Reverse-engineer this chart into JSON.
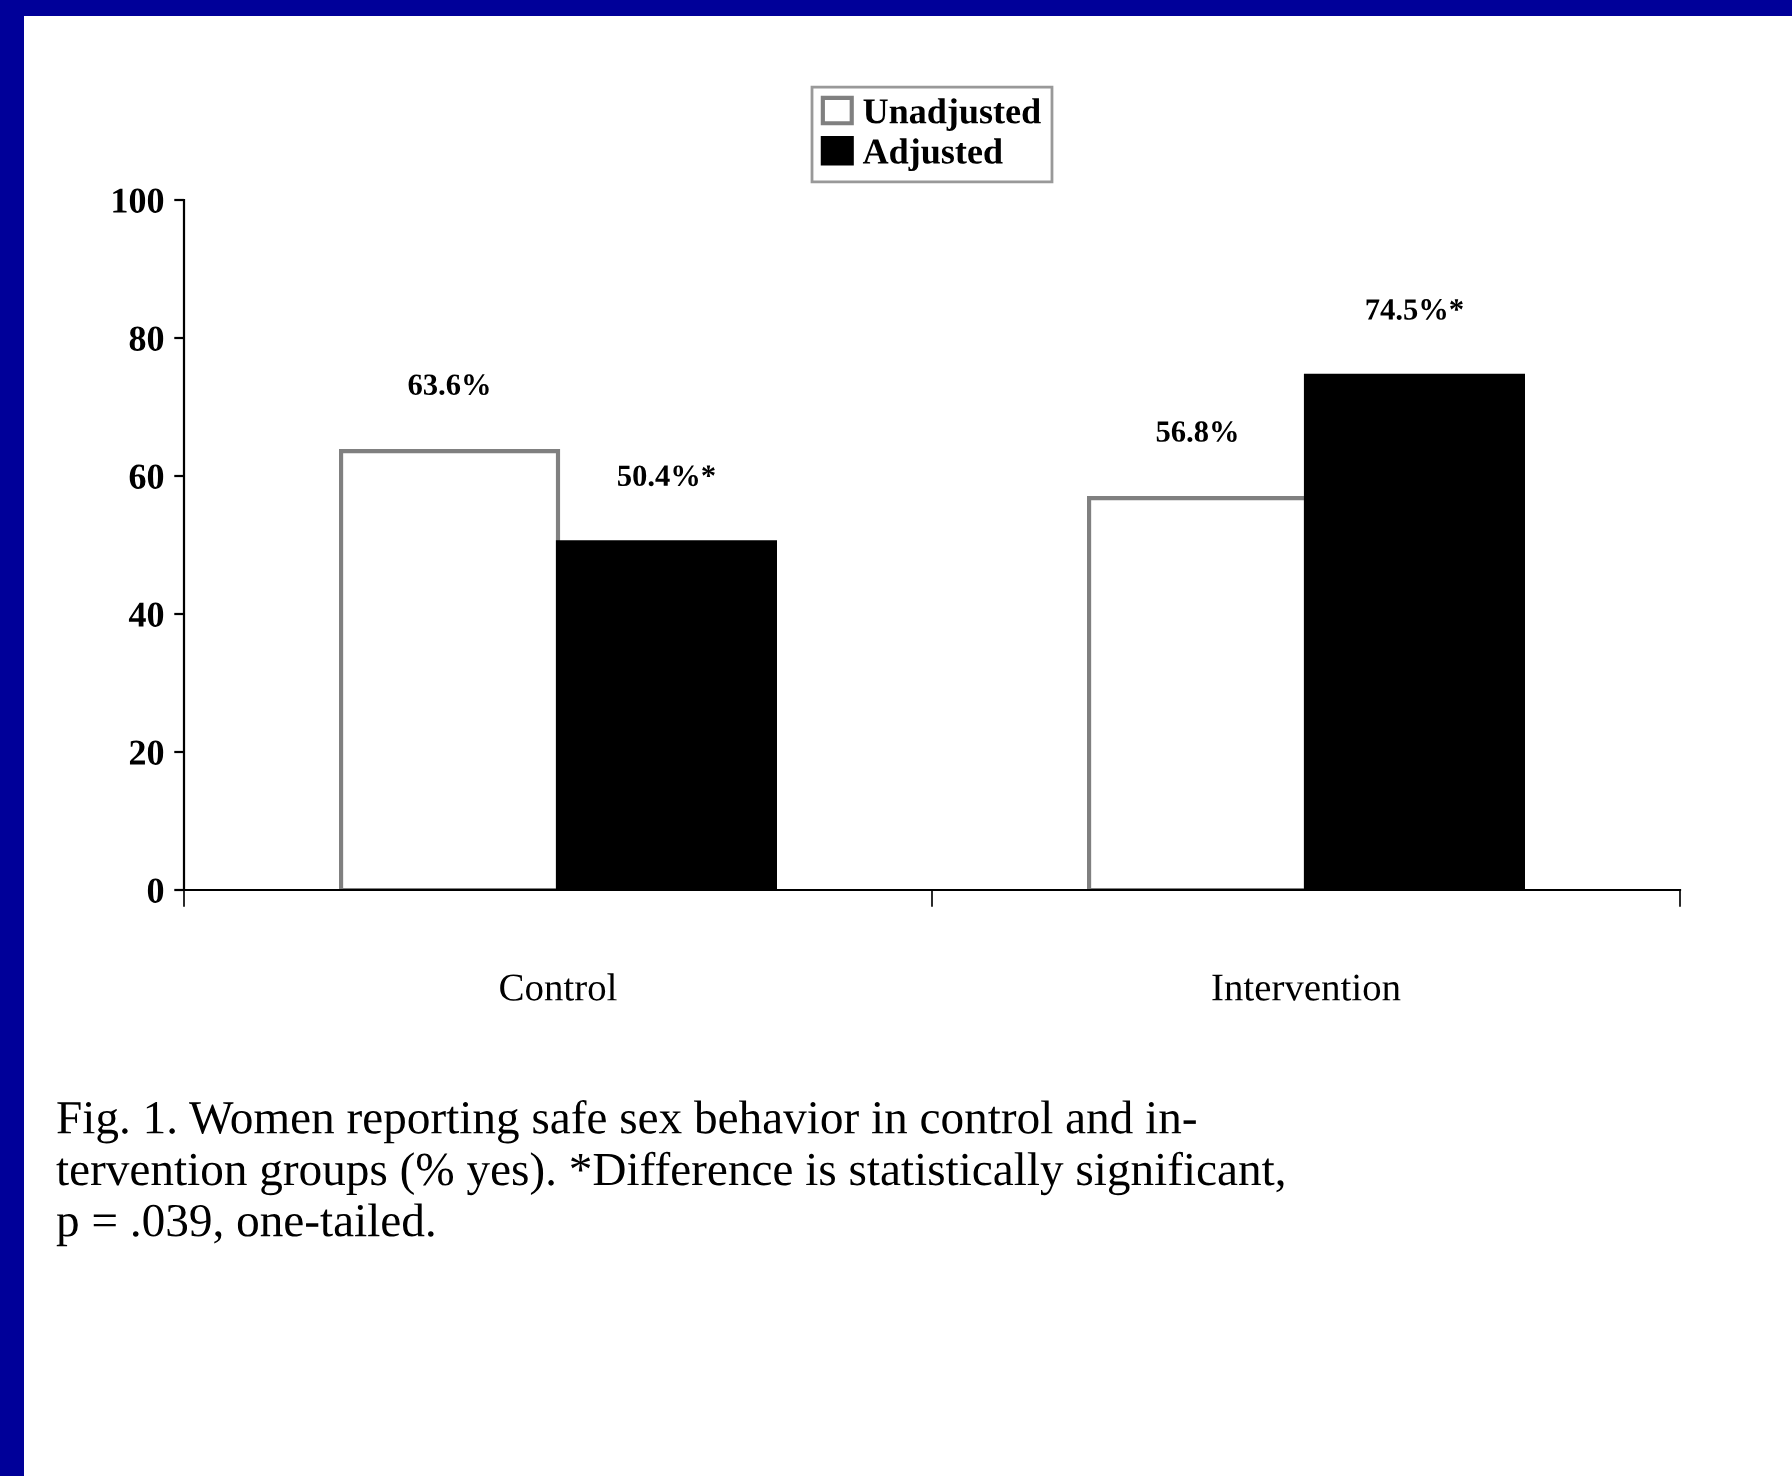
{
  "chart_data": {
    "type": "bar",
    "categories": [
      "Control",
      "Intervention"
    ],
    "series": [
      {
        "name": "Unadjusted",
        "color": "#ffffff",
        "values": [
          63.6,
          56.8
        ],
        "value_labels": [
          "63.6%",
          "56.8%"
        ]
      },
      {
        "name": "Adjusted",
        "color": "#000000",
        "values": [
          50.4,
          74.5
        ],
        "value_labels": [
          "50.4%*",
          "74.5%*"
        ]
      }
    ],
    "ylim": [
      0,
      100
    ],
    "yticks": [
      0,
      20,
      40,
      60,
      80,
      100
    ],
    "grid": false,
    "legend": "top",
    "annotations": [
      "Fig. 1. Women reporting safe sex behavior in control and in-\ntervention groups (% yes). *Difference is statistically significant,\np = .039, one-tailed."
    ]
  }
}
